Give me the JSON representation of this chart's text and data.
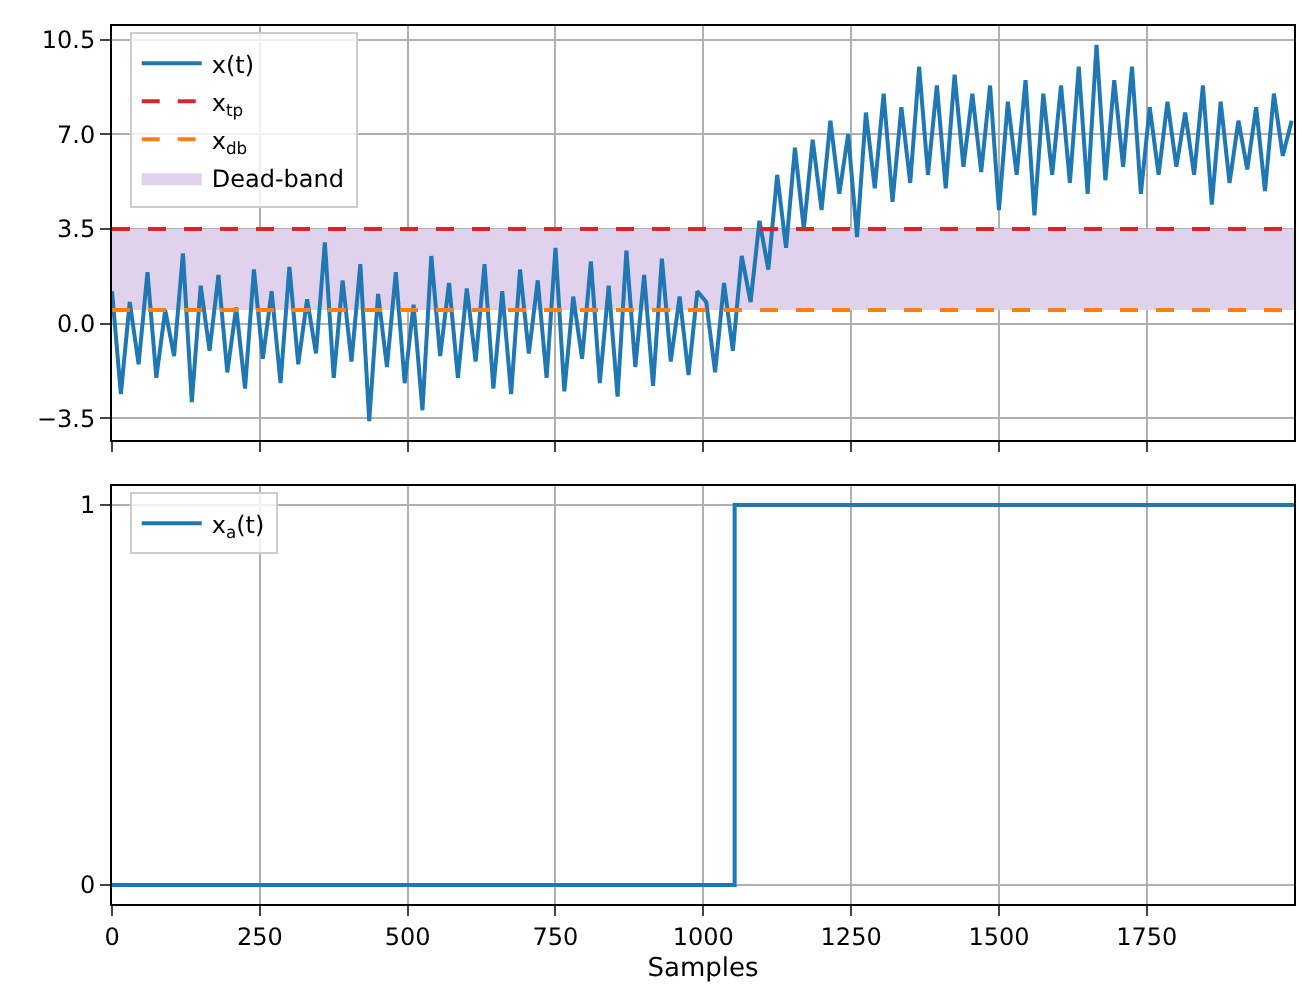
{
  "chart_data": [
    {
      "type": "line",
      "tick_labels": "y",
      "grid": true,
      "legend": "top left",
      "xlim": [
        0,
        1999
      ],
      "ylim": [
        -4.3,
        11.0
      ],
      "yticks": [
        {
          "value": -3.5,
          "label": "−3.5"
        },
        {
          "value": 0,
          "label": "0.0"
        },
        {
          "value": 3.5,
          "label": "3.5"
        },
        {
          "value": 7,
          "label": "7.0"
        },
        {
          "value": 10.5,
          "label": "10.5"
        }
      ],
      "x": [
        0,
        15,
        30,
        45,
        60,
        75,
        90,
        105,
        120,
        135,
        150,
        165,
        180,
        195,
        210,
        225,
        240,
        255,
        270,
        285,
        300,
        315,
        330,
        345,
        360,
        375,
        390,
        405,
        420,
        435,
        450,
        465,
        480,
        495,
        510,
        525,
        540,
        555,
        570,
        585,
        600,
        615,
        630,
        645,
        660,
        675,
        690,
        705,
        720,
        735,
        750,
        765,
        780,
        795,
        810,
        825,
        840,
        855,
        870,
        885,
        900,
        915,
        930,
        945,
        960,
        975,
        990,
        1005,
        1020,
        1035,
        1050,
        1065,
        1080,
        1095,
        1110,
        1125,
        1140,
        1155,
        1170,
        1185,
        1200,
        1215,
        1230,
        1245,
        1260,
        1275,
        1290,
        1305,
        1320,
        1335,
        1350,
        1365,
        1380,
        1395,
        1410,
        1425,
        1440,
        1455,
        1470,
        1485,
        1500,
        1515,
        1530,
        1545,
        1560,
        1575,
        1590,
        1605,
        1620,
        1635,
        1650,
        1665,
        1680,
        1695,
        1710,
        1725,
        1740,
        1755,
        1770,
        1785,
        1800,
        1815,
        1830,
        1845,
        1860,
        1875,
        1890,
        1905,
        1920,
        1935,
        1950,
        1965,
        1980,
        1995
      ],
      "series": [
        {
          "name": "x(t)",
          "color": "#1f77b4",
          "values": [
            1.2,
            -2.6,
            0.8,
            -1.5,
            1.9,
            -2.0,
            0.5,
            -1.2,
            2.6,
            -2.9,
            1.4,
            -1.0,
            1.8,
            -1.8,
            0.6,
            -2.4,
            2.0,
            -1.3,
            1.2,
            -2.2,
            2.1,
            -1.5,
            0.9,
            -1.1,
            3.0,
            -2.0,
            1.6,
            -1.4,
            2.2,
            -3.6,
            1.1,
            -1.6,
            1.9,
            -2.2,
            0.7,
            -3.2,
            2.5,
            -1.2,
            1.5,
            -2.0,
            1.3,
            -1.4,
            2.2,
            -2.4,
            1.2,
            -2.6,
            2.0,
            -1.1,
            1.6,
            -2.0,
            2.8,
            -2.5,
            1.0,
            -1.3,
            2.3,
            -2.2,
            1.4,
            -2.7,
            2.7,
            -1.6,
            1.8,
            -2.3,
            2.4,
            -1.4,
            1.0,
            -1.9,
            1.2,
            0.8,
            -1.8,
            1.5,
            -1.0,
            2.5,
            0.8,
            3.8,
            2.0,
            5.5,
            2.8,
            6.5,
            3.5,
            6.8,
            4.2,
            7.5,
            4.8,
            7.0,
            3.2,
            7.8,
            5.0,
            8.5,
            4.5,
            8.0,
            5.2,
            9.5,
            5.5,
            8.8,
            5.0,
            9.2,
            5.8,
            8.5,
            5.6,
            8.8,
            4.2,
            8.2,
            5.5,
            9.0,
            4.0,
            8.5,
            5.5,
            8.8,
            5.2,
            9.5,
            4.8,
            10.3,
            5.3,
            9.0,
            5.8,
            9.5,
            4.8,
            8.0,
            5.5,
            8.2,
            5.8,
            7.8,
            5.5,
            8.8,
            4.4,
            8.2,
            5.2,
            7.5,
            5.7,
            8.0,
            4.9,
            8.5,
            6.2,
            7.5
          ]
        }
      ],
      "ref_lines": [
        {
          "axis": "y",
          "value": 3.5,
          "label": "x$_{tp}$",
          "color": "#d62728",
          "line_style": "dashed"
        },
        {
          "axis": "y",
          "value": 0.5,
          "label": "x$_{db}$",
          "color": "#ff7f0e",
          "line_style": "dashed"
        }
      ],
      "bands": [
        {
          "axis": "y",
          "from": 0.5,
          "to": 3.5,
          "label": "Dead-band",
          "color": "#e0d1ec"
        }
      ]
    },
    {
      "type": "step",
      "grid": true,
      "legend": "top left",
      "xlabel": "Samples",
      "xlim": [
        0,
        1999
      ],
      "ylim": [
        -0.05,
        1.05
      ],
      "xticks": [
        0,
        250,
        500,
        750,
        1000,
        1250,
        1500,
        1750
      ],
      "yticks": [
        0,
        1
      ],
      "x": [
        0,
        1053,
        1999
      ],
      "series": [
        {
          "name": "x$_{a}$(t)",
          "color": "#1f77b4",
          "values": [
            0,
            1,
            1
          ]
        }
      ]
    }
  ]
}
